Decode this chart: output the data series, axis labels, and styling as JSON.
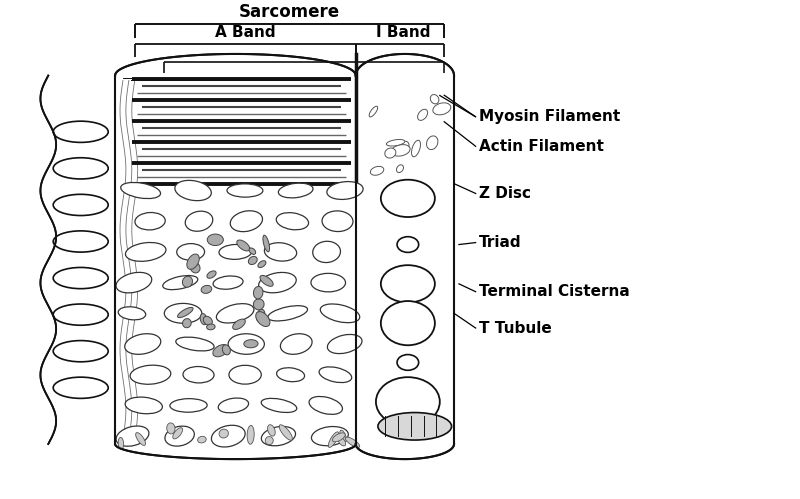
{
  "fig_width": 8.0,
  "fig_height": 4.99,
  "dpi": 100,
  "labels": {
    "sarcomere": "Sarcomere",
    "a_band": "A Band",
    "i_band": "I Band",
    "myosin": "Myosin Filament",
    "actin": "Actin Filament",
    "z_disc": "Z Disc",
    "triad": "Triad",
    "terminal_cisterna": "Terminal Cisterna",
    "t_tubule": "T Tubule"
  },
  "colors": {
    "line": "#111111",
    "fill_white": "#ffffff",
    "fill_light": "#cccccc",
    "fill_mid": "#999999",
    "bg": "#ffffff"
  }
}
